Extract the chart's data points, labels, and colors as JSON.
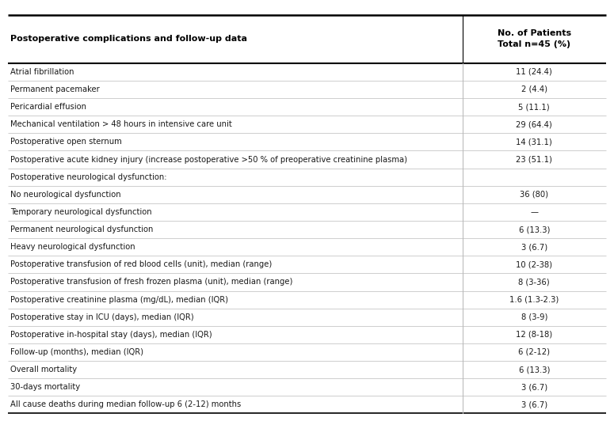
{
  "title_left": "Postoperative complications and follow-up data",
  "title_right": "No. of Patients\nTotal n=45 (%)",
  "rows": [
    [
      "Atrial fibrillation",
      "11 (24.4)"
    ],
    [
      "Permanent pacemaker",
      "2 (4.4)"
    ],
    [
      "Pericardial effusion",
      "5 (11.1)"
    ],
    [
      "Mechanical ventilation > 48 hours in intensive care unit",
      "29 (64.4)"
    ],
    [
      "Postoperative open sternum",
      "14 (31.1)"
    ],
    [
      "Postoperative acute kidney injury (increase postoperative >50 % of preoperative creatinine plasma)",
      "23 (51.1)"
    ],
    [
      "Postoperative neurological dysfunction:",
      ""
    ],
    [
      "No neurological dysfunction",
      "36 (80)"
    ],
    [
      "Temporary neurological dysfunction",
      "—"
    ],
    [
      "Permanent neurological dysfunction",
      "6 (13.3)"
    ],
    [
      "Heavy neurological dysfunction",
      "3 (6.7)"
    ],
    [
      "Postoperative transfusion of red blood cells (unit), median (range)",
      "10 (2-38)"
    ],
    [
      "Postoperative transfusion of fresh frozen plasma (unit), median (range)",
      "8 (3-36)"
    ],
    [
      "Postoperative creatinine plasma (mg/dL), median (IQR)",
      "1.6 (1.3-2.3)"
    ],
    [
      "Postoperative stay in ICU (days), median (IQR)",
      "8 (3-9)"
    ],
    [
      "Postoperative in-hospital stay (days), median (IQR)",
      "12 (8-18)"
    ],
    [
      "Follow-up (months), median (IQR)",
      "6 (2-12)"
    ],
    [
      "Overall mortality",
      "6 (13.3)"
    ],
    [
      "30-days mortality",
      "3 (6.7)"
    ],
    [
      "All cause deaths during median follow-up 6 (2-12) months",
      "3 (6.7)"
    ]
  ],
  "col_split": 0.753,
  "background_color": "#ffffff",
  "header_line_color": "#000000",
  "row_line_color": "#bbbbbb",
  "text_color": "#1a1a1a",
  "header_text_color": "#000000",
  "font_size": 7.2,
  "header_font_size": 8.0,
  "fig_width": 7.75,
  "fig_height": 5.32,
  "dpi": 100
}
